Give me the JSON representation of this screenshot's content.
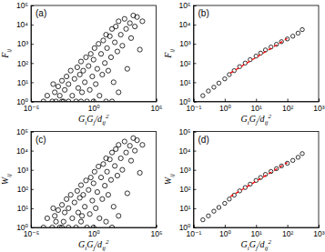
{
  "chart_data": [
    {
      "type": "scatter",
      "title": "(a)",
      "xlabel": "GiGj/dij2",
      "ylabel": "Fij",
      "log": true,
      "color": "#000000",
      "marker": "circle",
      "xlim": [
        1e-05,
        100000
      ],
      "ylim": [
        1,
        100000
      ],
      "xticks": [
        {
          "value": 1e-05,
          "label": "10⁻⁵"
        },
        {
          "value": 1,
          "label": "10⁰"
        },
        {
          "value": 100000,
          "label": "10⁵"
        }
      ],
      "yticks": [
        {
          "value": 1,
          "label": "10⁰"
        },
        {
          "value": 10,
          "label": "10¹"
        },
        {
          "value": 100,
          "label": "10²"
        },
        {
          "value": 1000,
          "label": "10³"
        },
        {
          "value": 10000,
          "label": "10⁴"
        },
        {
          "value": 100000,
          "label": "10⁵"
        }
      ],
      "x": [
        0.0001,
        0.0002,
        0.0005,
        0.0008,
        0.001,
        0.0015,
        0.002,
        0.003,
        0.004,
        0.005,
        0.007,
        0.01,
        0.01,
        0.015,
        0.02,
        0.03,
        0.04,
        0.05,
        0.06,
        0.08,
        0.1,
        0.1,
        0.12,
        0.15,
        0.2,
        0.25,
        0.3,
        0.4,
        0.5,
        0.6,
        0.8,
        1,
        1,
        1.2,
        1.5,
        2,
        2.5,
        3,
        4,
        5,
        6,
        8,
        10,
        10,
        12,
        15,
        20,
        25,
        30,
        40,
        50,
        60,
        80,
        100,
        100,
        150,
        200,
        300,
        400,
        500,
        800,
        1000,
        1500,
        2000,
        3000,
        5000,
        8000,
        0.003,
        0.0006,
        30
      ],
      "values": [
        1,
        2,
        1,
        3,
        1,
        6,
        2,
        12,
        1,
        4,
        20,
        1,
        8,
        40,
        2,
        15,
        1,
        60,
        5,
        25,
        1,
        120,
        3,
        40,
        10,
        200,
        1,
        70,
        4,
        300,
        20,
        1,
        150,
        600,
        8,
        50,
        1000,
        2,
        300,
        25,
        1500,
        100,
        1,
        3000,
        600,
        40,
        2500,
        200,
        6000,
        10,
        1200,
        8000,
        400,
        3,
        15000,
        3000,
        800,
        20000,
        6000,
        50,
        12000,
        2000,
        30000,
        8000,
        25000,
        500,
        15000,
        1,
        8,
        1
      ]
    },
    {
      "type": "scatter",
      "title": "(b)",
      "xlabel": "GiGj/dij2",
      "ylabel": "Fij",
      "log": true,
      "xlim": [
        0.1,
        1000
      ],
      "ylim": [
        1,
        100000
      ],
      "xticks": [
        {
          "value": 0.1,
          "label": "10⁻¹"
        },
        {
          "value": 1,
          "label": "10⁰"
        },
        {
          "value": 10,
          "label": "10¹"
        },
        {
          "value": 100,
          "label": "10²"
        },
        {
          "value": 1000,
          "label": "10³"
        }
      ],
      "yticks": [
        {
          "value": 1,
          "label": "10⁰"
        },
        {
          "value": 10,
          "label": "10¹"
        },
        {
          "value": 100,
          "label": "10²"
        },
        {
          "value": 1000,
          "label": "10³"
        },
        {
          "value": 10000,
          "label": "10⁴"
        },
        {
          "value": 100000,
          "label": "10⁵"
        }
      ],
      "series": [
        {
          "type": "scatter",
          "color": "#000000",
          "marker": "circle",
          "x": [
            0.2,
            0.3,
            0.45,
            0.65,
            1,
            1.4,
            2,
            3,
            4.5,
            6.5,
            10,
            14,
            20,
            30,
            45,
            65,
            100,
            150,
            220,
            300
          ],
          "values": [
            2,
            3.5,
            5.5,
            9,
            15,
            25,
            40,
            65,
            100,
            150,
            230,
            330,
            480,
            680,
            950,
            1300,
            1800,
            2500,
            3600,
            5500
          ]
        },
        {
          "type": "line",
          "color": "#ff0000",
          "line_style": "dashed",
          "x": [
            1.5,
            100
          ],
          "values": [
            30,
            1900
          ]
        }
      ]
    },
    {
      "type": "scatter",
      "title": "(c)",
      "xlabel": "GiGj/dij2",
      "ylabel": "Wij",
      "log": true,
      "color": "#000000",
      "marker": "circle",
      "xlim": [
        1e-05,
        100000
      ],
      "ylim": [
        1,
        100000
      ],
      "xticks": [
        {
          "value": 1e-05,
          "label": "10⁻⁵"
        },
        {
          "value": 1,
          "label": "10⁰"
        },
        {
          "value": 100000,
          "label": "10⁵"
        }
      ],
      "yticks": [
        {
          "value": 1,
          "label": "10⁰"
        },
        {
          "value": 10,
          "label": "10¹"
        },
        {
          "value": 100,
          "label": "10²"
        },
        {
          "value": 1000,
          "label": "10³"
        },
        {
          "value": 10000,
          "label": "10⁴"
        },
        {
          "value": 100000,
          "label": "10⁵"
        }
      ],
      "x": [
        0.0001,
        0.0002,
        0.0005,
        0.0008,
        0.001,
        0.0015,
        0.002,
        0.003,
        0.004,
        0.005,
        0.007,
        0.01,
        0.01,
        0.015,
        0.02,
        0.03,
        0.04,
        0.05,
        0.06,
        0.08,
        0.1,
        0.1,
        0.12,
        0.15,
        0.2,
        0.25,
        0.3,
        0.4,
        0.5,
        0.6,
        0.8,
        1,
        1,
        1.2,
        1.5,
        2,
        2.5,
        3,
        4,
        5,
        6,
        8,
        10,
        10,
        12,
        15,
        20,
        25,
        30,
        40,
        50,
        60,
        80,
        100,
        100,
        150,
        200,
        300,
        400,
        500,
        800,
        1000,
        1500,
        2000,
        3000,
        5000,
        8000,
        0.003,
        0.0006,
        30
      ],
      "values": [
        1,
        3,
        1,
        4,
        2,
        8,
        1,
        15,
        2,
        6,
        30,
        1,
        10,
        50,
        3,
        20,
        1,
        80,
        6,
        35,
        2,
        160,
        4,
        50,
        12,
        280,
        1,
        90,
        5,
        400,
        25,
        1,
        200,
        800,
        10,
        70,
        1500,
        3,
        400,
        30,
        2000,
        150,
        2,
        4000,
        800,
        50,
        3500,
        300,
        8000,
        12,
        1600,
        12000,
        500,
        4,
        20000,
        4000,
        1000,
        30000,
        8000,
        60,
        18000,
        3000,
        45000,
        10000,
        35000,
        700,
        20000,
        1,
        10,
        1
      ]
    },
    {
      "type": "scatter",
      "title": "(d)",
      "xlabel": "GiGj/dij2",
      "ylabel": "Wij",
      "log": true,
      "xlim": [
        0.1,
        1000
      ],
      "ylim": [
        1,
        100000
      ],
      "xticks": [
        {
          "value": 0.1,
          "label": "10⁻¹"
        },
        {
          "value": 1,
          "label": "10⁰"
        },
        {
          "value": 10,
          "label": "10¹"
        },
        {
          "value": 100,
          "label": "10²"
        },
        {
          "value": 1000,
          "label": "10³"
        }
      ],
      "yticks": [
        {
          "value": 1,
          "label": "10⁰"
        },
        {
          "value": 10,
          "label": "10¹"
        },
        {
          "value": 100,
          "label": "10²"
        },
        {
          "value": 1000,
          "label": "10³"
        },
        {
          "value": 10000,
          "label": "10⁴"
        },
        {
          "value": 100000,
          "label": "10⁵"
        }
      ],
      "series": [
        {
          "type": "scatter",
          "color": "#000000",
          "marker": "circle",
          "x": [
            0.2,
            0.3,
            0.45,
            0.65,
            1,
            1.4,
            2,
            3,
            4.5,
            6.5,
            10,
            14,
            20,
            30,
            45,
            65,
            100,
            150,
            220,
            300
          ],
          "values": [
            2.5,
            4,
            7,
            11,
            18,
            30,
            48,
            80,
            120,
            180,
            280,
            400,
            580,
            820,
            1150,
            1600,
            2200,
            3100,
            4500,
            7000
          ]
        },
        {
          "type": "line",
          "color": "#ff0000",
          "line_style": "dashed",
          "x": [
            1.5,
            100
          ],
          "values": [
            40,
            2400
          ]
        }
      ]
    }
  ]
}
